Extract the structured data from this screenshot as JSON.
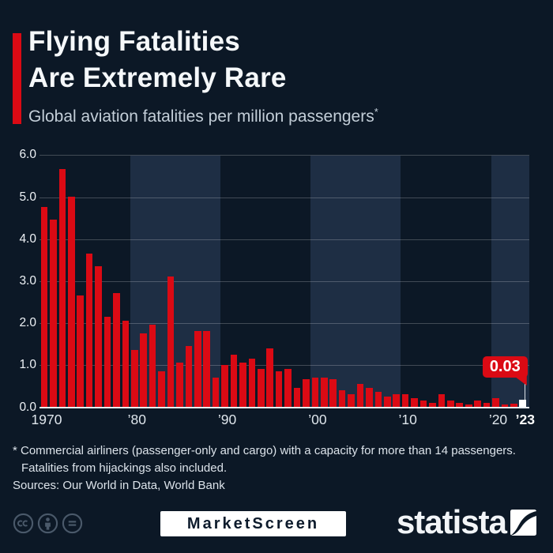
{
  "header": {
    "title_line1": "Flying Fatalities",
    "title_line2": "Are Extremely Rare",
    "subtitle": "Global aviation fatalities per million passengers",
    "footnote_marker": "*"
  },
  "chart_data": {
    "type": "bar",
    "title": "Global aviation fatalities per million passengers",
    "xlabel": "",
    "ylabel": "",
    "ylim": [
      0,
      6
    ],
    "grid": "horizontal",
    "legend": "none",
    "categories": [
      1970,
      1971,
      1972,
      1973,
      1974,
      1975,
      1976,
      1977,
      1978,
      1979,
      1980,
      1981,
      1982,
      1983,
      1984,
      1985,
      1986,
      1987,
      1988,
      1989,
      1990,
      1991,
      1992,
      1993,
      1994,
      1995,
      1996,
      1997,
      1998,
      1999,
      2000,
      2001,
      2002,
      2003,
      2004,
      2005,
      2006,
      2007,
      2008,
      2009,
      2010,
      2011,
      2012,
      2013,
      2014,
      2015,
      2016,
      2017,
      2018,
      2019,
      2020,
      2021,
      2022,
      2023
    ],
    "values": [
      4.75,
      4.45,
      5.65,
      5.0,
      2.65,
      3.65,
      3.35,
      2.15,
      2.7,
      2.05,
      1.35,
      1.75,
      1.95,
      0.85,
      3.1,
      1.05,
      1.45,
      1.8,
      1.8,
      0.7,
      1.0,
      1.25,
      1.05,
      1.15,
      0.9,
      1.4,
      0.85,
      0.9,
      0.45,
      0.65,
      0.7,
      0.7,
      0.65,
      0.4,
      0.3,
      0.55,
      0.45,
      0.35,
      0.25,
      0.3,
      0.3,
      0.2,
      0.15,
      0.1,
      0.3,
      0.15,
      0.1,
      0.05,
      0.15,
      0.1,
      0.2,
      0.05,
      0.08,
      0.03
    ],
    "ytick_labels": [
      "0.0",
      "1.0",
      "2.0",
      "3.0",
      "4.0",
      "5.0",
      "6.0"
    ],
    "xticks": [
      {
        "year": 1970,
        "label": "1970",
        "bold": false
      },
      {
        "year": 1980,
        "label": "’80",
        "bold": false
      },
      {
        "year": 1990,
        "label": "’90",
        "bold": false
      },
      {
        "year": 2000,
        "label": "’00",
        "bold": false
      },
      {
        "year": 2010,
        "label": "’10",
        "bold": false
      },
      {
        "year": 2020,
        "label": "’20",
        "bold": false
      },
      {
        "year": 2023,
        "label": "’23",
        "bold": true
      }
    ],
    "annotation": {
      "year": 2023,
      "label": "0.03",
      "marker": "white-square"
    },
    "highlight_decades": [
      1980,
      2000,
      2020
    ],
    "colors": {
      "bar": "#db0a14",
      "background": "#0c1826",
      "decade_band": "#1e2e44",
      "gridline": "rgba(255,255,255,0.22)",
      "baseline": "#e9edf2",
      "callout_bg": "#db0a14",
      "callout_text": "#ffffff"
    }
  },
  "footnote": {
    "line1": "* Commercial airliners (passenger-only and cargo) with a capacity for more than 14 passengers.",
    "line2": "Fatalities from hijackings also included."
  },
  "sources": "Sources: Our World in Data, World Bank",
  "footer": {
    "marketscreen_label": "MarketScreen",
    "statista_label": "statista",
    "license_icons": [
      "cc-icon",
      "attribution-icon",
      "no-derivatives-icon"
    ]
  }
}
